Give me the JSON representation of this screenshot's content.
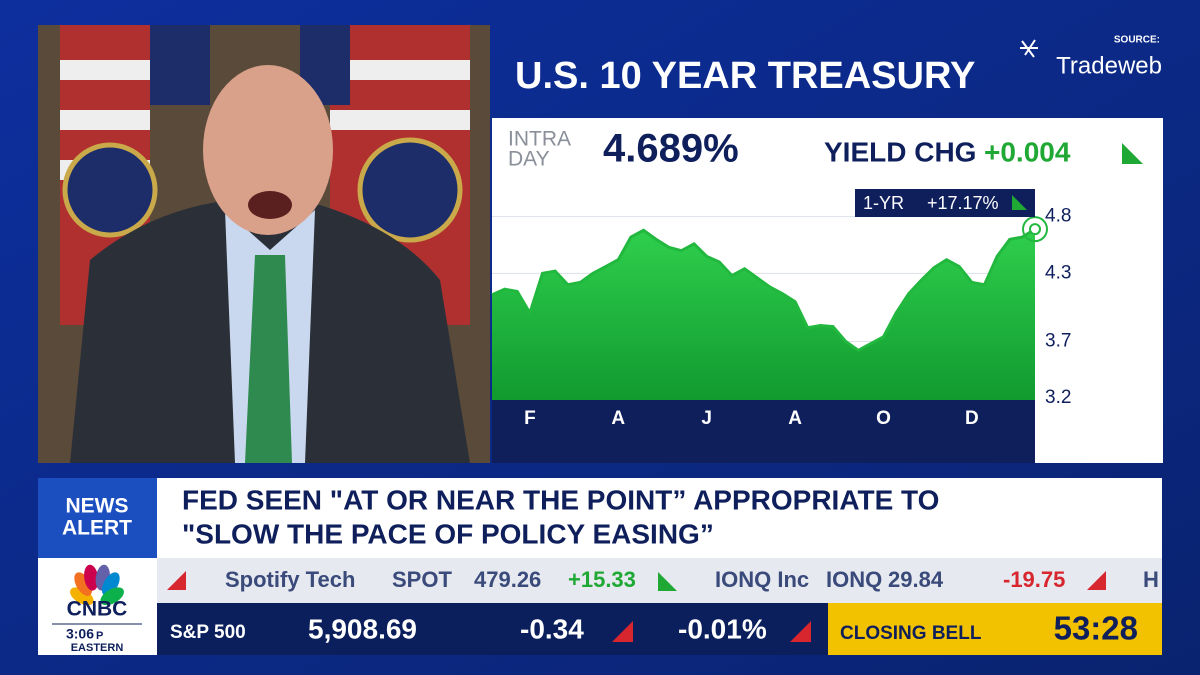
{
  "header": {
    "title": "U.S. 10 YEAR TREASURY",
    "source_label": "SOURCE:",
    "source": "Tradeweb"
  },
  "quote": {
    "label_lines": [
      "INTRA",
      "DAY"
    ],
    "yield": "4.689%",
    "change_label": "YIELD CHG",
    "change": "+0.004",
    "period": "1-YR",
    "period_change": "+17.17%"
  },
  "chart_data": {
    "type": "area",
    "categories": [
      null,
      null,
      null,
      "F",
      null,
      null,
      null,
      null,
      null,
      null,
      "A",
      null,
      null,
      null,
      null,
      null,
      null,
      "J",
      null,
      null,
      null,
      null,
      null,
      null,
      "A",
      null,
      null,
      null,
      null,
      null,
      null,
      "O",
      null,
      null,
      null,
      null,
      null,
      null,
      "D",
      null,
      null,
      null,
      null,
      null
    ],
    "values": [
      4.11,
      4.16,
      4.14,
      3.95,
      4.3,
      4.32,
      4.2,
      4.22,
      4.3,
      4.36,
      4.42,
      4.62,
      4.68,
      4.6,
      4.53,
      4.5,
      4.56,
      4.45,
      4.4,
      4.28,
      4.34,
      4.26,
      4.18,
      4.12,
      4.05,
      3.82,
      3.84,
      3.83,
      3.7,
      3.62,
      3.68,
      3.74,
      3.95,
      4.12,
      4.24,
      4.35,
      4.42,
      4.36,
      4.22,
      4.2,
      4.45,
      4.6,
      4.62,
      4.69
    ],
    "color": "#22b83f",
    "ylim": [
      3.2,
      5.0
    ],
    "yticks": [
      3.2,
      3.7,
      4.3,
      4.8
    ],
    "grid": true
  },
  "news": {
    "badge_lines": [
      "NEWS",
      "ALERT"
    ],
    "headline_lines": [
      "FED SEEN \"AT OR NEAR THE POINT” APPROPRIATE TO",
      "\"SLOW THE PACE OF POLICY EASING”"
    ]
  },
  "ticker": [
    {
      "name": "Spotify Tech",
      "symbol": "SPOT",
      "price": "479.26",
      "change": "+15.33"
    },
    {
      "name": "IONQ Inc",
      "symbol": "IONQ",
      "price": "29.84",
      "change": "-19.75"
    },
    {
      "name": "H"
    }
  ],
  "index": {
    "name": "S&P 500",
    "value": "5,908.69",
    "change": "-0.34",
    "percent": "-0.01%"
  },
  "countdown": {
    "label": "CLOSING BELL",
    "time": "53:28"
  },
  "logo": {
    "network": "CNBC",
    "time": "3:06",
    "meridiem": "P",
    "zone": "EASTERN"
  }
}
